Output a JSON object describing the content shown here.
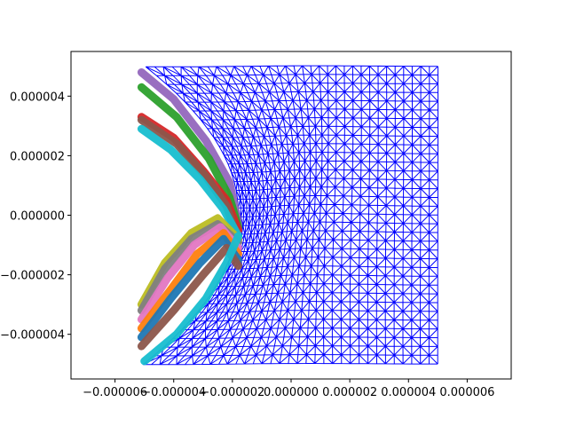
{
  "chart_data": {
    "type": "line",
    "title": "",
    "xlabel": "",
    "ylabel": "",
    "xlim": [
      -7.5e-06,
      7.5e-06
    ],
    "ylim": [
      -5.5e-06,
      5.5e-06
    ],
    "x_ticks": [
      -6e-06,
      -4e-06,
      -2e-06,
      0.0,
      2e-06,
      4e-06,
      6e-06
    ],
    "x_tick_labels": [
      "−0.000006",
      "−0.000004",
      "−0.000002",
      "0.000000",
      "0.000002",
      "0.000004",
      "0.000006"
    ],
    "y_ticks": [
      -4e-06,
      -2e-06,
      0.0,
      2e-06,
      4e-06
    ],
    "y_tick_labels": [
      "−0.000004",
      "−0.000002",
      "0.000000",
      "0.000002",
      "0.000004"
    ],
    "grid": false,
    "legend": "none",
    "mesh": {
      "color": "#0000ff",
      "x_range": [
        -5e-06,
        5e-06
      ],
      "y_range": [
        -5e-06,
        5e-06
      ],
      "columns": 34,
      "rows": 34,
      "bulge_center": [
        -1.6e-06,
        0.0
      ],
      "note": "triangulated mesh deformed around a crescent-shaped boundary"
    },
    "series": [
      {
        "color": "#9467bd",
        "points": [
          [
            -5.1e-06,
            4.8e-06
          ],
          [
            -4e-06,
            3.9e-06
          ],
          [
            -2.9e-06,
            2.5e-06
          ],
          [
            -2.1e-06,
            1.1e-06
          ],
          [
            -1.8e-06,
            -3e-07
          ]
        ]
      },
      {
        "color": "#2ca02c",
        "points": [
          [
            -5.1e-06,
            4.3e-06
          ],
          [
            -3.9e-06,
            3.3e-06
          ],
          [
            -2.8e-06,
            1.9e-06
          ],
          [
            -2.1e-06,
            6e-07
          ],
          [
            -1.8e-06,
            -4e-07
          ]
        ]
      },
      {
        "color": "#d62728",
        "points": [
          [
            -5.1e-06,
            3.3e-06
          ],
          [
            -4e-06,
            2.6e-06
          ],
          [
            -3e-06,
            1.5e-06
          ],
          [
            -2.2e-06,
            5e-07
          ],
          [
            -1.8e-06,
            -5e-07
          ]
        ]
      },
      {
        "color": "#8c564b",
        "points": [
          [
            -5.1e-06,
            3.2e-06
          ],
          [
            -3.9e-06,
            2.4e-06
          ],
          [
            -2.9e-06,
            1.3e-06
          ],
          [
            -2.2e-06,
            3e-07
          ],
          [
            -1.9e-06,
            -6e-07
          ]
        ]
      },
      {
        "color": "#17becf",
        "points": [
          [
            -5.1e-06,
            2.9e-06
          ],
          [
            -4.1e-06,
            2.2e-06
          ],
          [
            -3.1e-06,
            1.2e-06
          ],
          [
            -2.3e-06,
            2e-07
          ],
          [
            -1.8e-06,
            -7e-07
          ]
        ]
      },
      {
        "color": "#bcbd22",
        "points": [
          [
            -5.1e-06,
            -3e-06
          ],
          [
            -4.3e-06,
            -1.6e-06
          ],
          [
            -3.4e-06,
            -6e-07
          ],
          [
            -2.5e-06,
            -1e-07
          ],
          [
            -1.8e-06,
            -8e-07
          ]
        ]
      },
      {
        "color": "#7f7f7f",
        "points": [
          [
            -5.1e-06,
            -3.2e-06
          ],
          [
            -4.3e-06,
            -1.8e-06
          ],
          [
            -3.4e-06,
            -8e-07
          ],
          [
            -2.5e-06,
            -3e-07
          ],
          [
            -1.8e-06,
            -9e-07
          ]
        ]
      },
      {
        "color": "#e377c2",
        "points": [
          [
            -5.1e-06,
            -3.5e-06
          ],
          [
            -4.2e-06,
            -2.1e-06
          ],
          [
            -3.3e-06,
            -1e-06
          ],
          [
            -2.4e-06,
            -4e-07
          ],
          [
            -1.8e-06,
            -1.1e-06
          ]
        ]
      },
      {
        "color": "#ff7f0e",
        "points": [
          [
            -5.1e-06,
            -3.8e-06
          ],
          [
            -4.1e-06,
            -2.5e-06
          ],
          [
            -3.2e-06,
            -1.3e-06
          ],
          [
            -2.3e-06,
            -6e-07
          ],
          [
            -1.8e-06,
            -1.3e-06
          ]
        ]
      },
      {
        "color": "#1f77b4",
        "points": [
          [
            -5.1e-06,
            -4.1e-06
          ],
          [
            -4.1e-06,
            -2.8e-06
          ],
          [
            -3.1e-06,
            -1.6e-06
          ],
          [
            -2.3e-06,
            -8e-07
          ],
          [
            -1.8e-06,
            -1.5e-06
          ]
        ]
      },
      {
        "color": "#8c564b",
        "points": [
          [
            -5.1e-06,
            -4.4e-06
          ],
          [
            -4e-06,
            -3.2e-06
          ],
          [
            -3e-06,
            -2e-06
          ],
          [
            -2.2e-06,
            -1.1e-06
          ],
          [
            -1.8e-06,
            -1.7e-06
          ]
        ]
      },
      {
        "color": "#17becf",
        "points": [
          [
            -5e-06,
            -4.9e-06
          ],
          [
            -3.9e-06,
            -4e-06
          ],
          [
            -2.9e-06,
            -2.8e-06
          ],
          [
            -2.2e-06,
            -1.6e-06
          ],
          [
            -1.8e-06,
            -7e-07
          ]
        ]
      }
    ]
  }
}
